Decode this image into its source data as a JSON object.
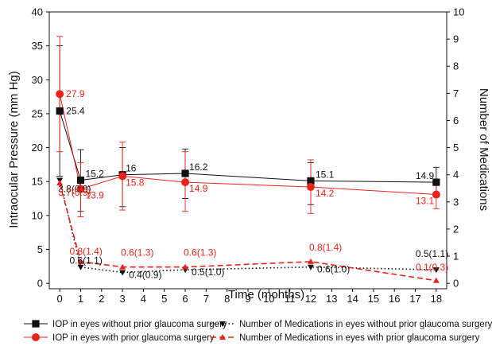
{
  "chart_data": {
    "type": "line",
    "x": [
      0,
      1,
      3,
      6,
      12,
      18
    ],
    "xlabel": "Time (mohths)",
    "ylabel": "Intraocular Pressure (mm Hg)",
    "y2label": "Number of Medications",
    "xlim": [
      -0.5,
      18.5
    ],
    "xticks": [
      "0",
      "1",
      "2",
      "3",
      "4",
      "5",
      "6",
      "7",
      "8",
      "9",
      "10",
      "11",
      "12",
      "13",
      "14",
      "15",
      "16",
      "17",
      "18"
    ],
    "ylim": [
      -0.8,
      40
    ],
    "yticks": [
      "0",
      "5",
      "10",
      "15",
      "20",
      "25",
      "30",
      "35",
      "40"
    ],
    "y2lim": [
      -0.2,
      10
    ],
    "y2ticks": [
      "0",
      "1",
      "2",
      "3",
      "4",
      "5",
      "6",
      "7",
      "8",
      "9",
      "10"
    ],
    "colors": {
      "black_series": "#111111",
      "red_series": "#e8231c",
      "grid": "none"
    },
    "series": [
      {
        "name": "IOP in eyes without prior glaucoma surgery",
        "axis": "left",
        "color": "#111111",
        "marker": "square",
        "line": "solid",
        "values": [
          25.4,
          15.2,
          16.0,
          16.2,
          15.1,
          14.9
        ],
        "error_low": [
          15.8,
          10.6,
          11.3,
          12.5,
          11.6,
          12.7
        ],
        "error_high": [
          35.0,
          19.7,
          20.0,
          19.8,
          17.8,
          17.1
        ],
        "labels": [
          "25.4",
          "15.2",
          "16",
          "16.2",
          "15.1",
          "14.9"
        ]
      },
      {
        "name": "IOP in eyes with prior glaucoma surgery",
        "axis": "left",
        "color": "#e8231c",
        "marker": "circle",
        "line": "solid",
        "values": [
          27.9,
          13.9,
          15.8,
          14.9,
          14.2,
          13.1
        ],
        "error_low": [
          19.4,
          9.8,
          10.8,
          10.6,
          10.3,
          11.0
        ],
        "error_high": [
          36.4,
          17.8,
          20.8,
          19.4,
          18.2,
          15.2
        ],
        "labels": [
          "27.9",
          "13.9",
          "15.8",
          "14.9",
          "14.2",
          "13.1"
        ]
      },
      {
        "name": "Number of Medications in eyes without prior glaucoma surgery",
        "axis": "right",
        "color": "#111111",
        "marker": "triangle-down",
        "line": "dotted",
        "values": [
          3.8,
          0.6,
          0.4,
          0.5,
          0.6,
          0.5
        ],
        "labels": [
          "3.8(0.9)",
          "0.6(1.1)",
          "0.4(0.9)",
          "0.5(1.0)",
          "0.6(1.0)",
          "0.5(1.1)"
        ]
      },
      {
        "name": "Number of Medications in eyes with prior glaucoma surgery",
        "axis": "right",
        "color": "#e8231c",
        "marker": "triangle-up",
        "line": "dashed",
        "values": [
          3.7,
          0.8,
          0.6,
          0.6,
          0.8,
          0.1
        ],
        "labels": [
          "3.7(0.9)",
          "0.8(1.4)",
          "0.6(1.3)",
          "0.6(1.3)",
          "0.8(1.4)",
          "0.1(0.3)"
        ]
      }
    ],
    "legend": {
      "placement": "bottom",
      "entries": [
        "IOP in eyes without prior glaucoma surgery",
        "Number of Medications in eyes without prior glaucoma surgery",
        "IOP in eyes with prior glaucoma surgery",
        "Number of Medications in eyes with prior glaucoma surgery"
      ]
    }
  }
}
